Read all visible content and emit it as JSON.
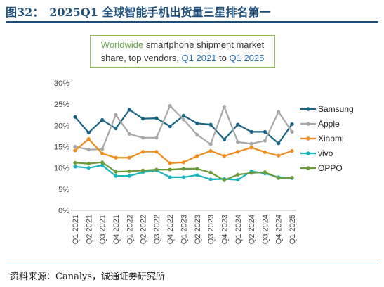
{
  "figure_title": "图32：　2025Q1 全球智能手机出货量三星排名第一",
  "source": "资料来源：Canalys，诚通证券研究所",
  "chart_data": {
    "type": "line",
    "title_parts": {
      "line1_highlight": "Worldwide",
      "line1_rest": " smartphone shipment market",
      "line2_pre": "share, top vendors, ",
      "line2_q1": "Q1 2021",
      "line2_mid": " to ",
      "line2_q2": "Q1 2025"
    },
    "categories": [
      "Q1 2021",
      "Q2 2021",
      "Q3 2021",
      "Q4 2021",
      "Q1 2022",
      "Q2 2022",
      "Q3 2022",
      "Q4 2022",
      "Q1 2023",
      "Q2 2023",
      "Q3 2023",
      "Q4 2023",
      "Q1 2024",
      "Q2 2024",
      "Q3 2024",
      "Q4 2024",
      "Q1 2025"
    ],
    "y_ticks": [
      "0%",
      "5%",
      "10%",
      "15%",
      "20%",
      "25%",
      "30%"
    ],
    "ylim": [
      0,
      30
    ],
    "grid": false,
    "legend_position": "right",
    "series": [
      {
        "name": "Samsung",
        "color": "#1a6485",
        "values": [
          22.0,
          18.3,
          21.3,
          19.3,
          23.7,
          21.6,
          21.7,
          19.8,
          22.3,
          20.5,
          20.2,
          16.7,
          20.2,
          18.5,
          18.5,
          15.8,
          20.3
        ]
      },
      {
        "name": "Apple",
        "color": "#a8a8a8",
        "values": [
          15.0,
          14.3,
          14.4,
          22.5,
          18.0,
          17.1,
          17.1,
          24.6,
          21.4,
          17.8,
          15.6,
          24.4,
          16.1,
          15.7,
          16.4,
          23.2,
          18.5
        ]
      },
      {
        "name": "Xiaomi",
        "color": "#f08c1e",
        "values": [
          14.1,
          16.8,
          13.4,
          12.4,
          12.4,
          13.8,
          13.8,
          11.1,
          11.3,
          12.8,
          14.0,
          12.8,
          13.8,
          14.8,
          13.7,
          12.9,
          14.0
        ]
      },
      {
        "name": "vivo",
        "color": "#18b5bf",
        "values": [
          10.3,
          10.0,
          10.6,
          8.1,
          8.1,
          9.0,
          9.4,
          7.8,
          7.8,
          8.3,
          7.3,
          7.4,
          7.2,
          9.2,
          8.7,
          7.8,
          7.6
        ]
      },
      {
        "name": "OPPO",
        "color": "#6b9a3a",
        "values": [
          11.2,
          11.0,
          11.3,
          9.1,
          9.2,
          9.4,
          9.6,
          9.6,
          9.8,
          9.8,
          8.9,
          7.1,
          8.4,
          8.8,
          9.0,
          7.6,
          7.7
        ]
      }
    ]
  }
}
